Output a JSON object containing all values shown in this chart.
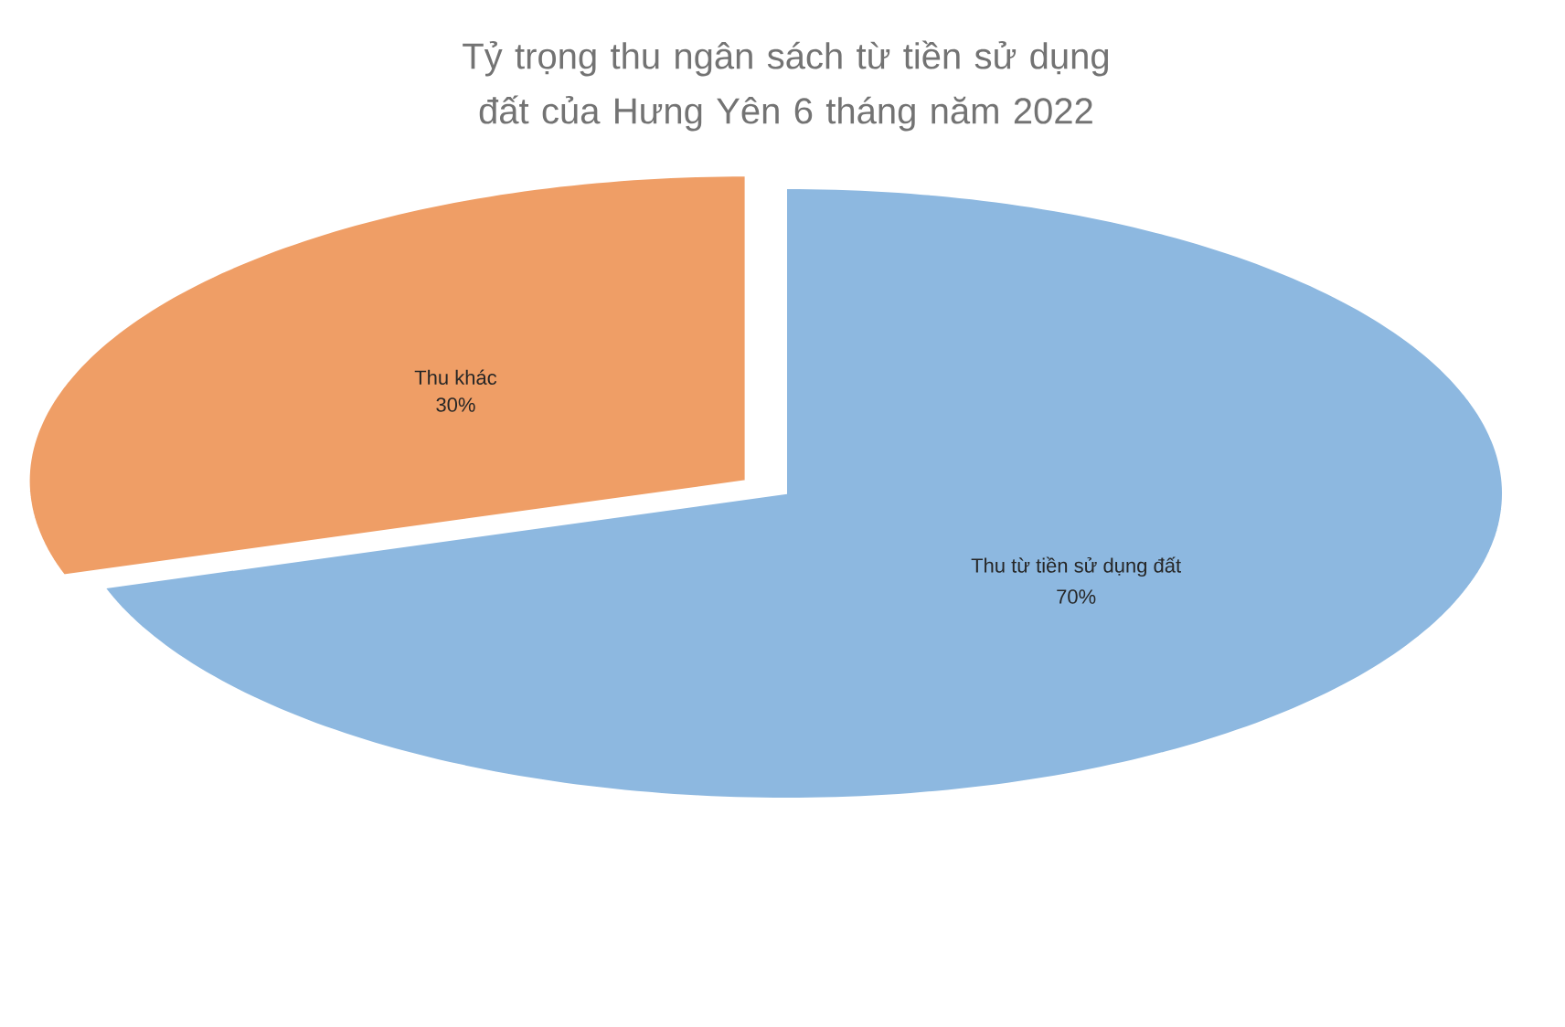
{
  "chart_data": {
    "type": "pie",
    "title": "Tỷ trọng thu ngân sách từ tiền sử dụng đất của Hưng Yên 6 tháng năm 2022",
    "categories": [
      "Thu từ tiền sử dụng đất",
      "Thu khác"
    ],
    "values": [
      70,
      30
    ],
    "colors": [
      "#8db8e0",
      "#ef9e66"
    ],
    "value_labels": [
      "70%",
      "30%"
    ]
  }
}
